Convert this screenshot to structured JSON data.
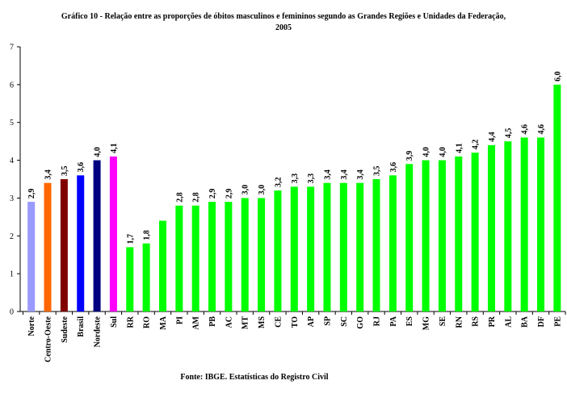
{
  "title_line1": "Gráfico 10 - Relação entre as proporções de óbitos masculinos e femininos segundo as Grandes Regiões e Unidades da Federação,",
  "title_line2": "2005",
  "source": "Fonte: IBGE. Estatísticas do Registro Civil",
  "chart_data": {
    "type": "bar",
    "title": "Gráfico 10 - Relação entre as proporções de óbitos masculinos e femininos segundo as Grandes Regiões e Unidades da Federação, 2005",
    "xlabel": "",
    "ylabel": "",
    "ylim": [
      0,
      7
    ],
    "yticks": [
      0,
      1,
      2,
      3,
      4,
      5,
      6,
      7
    ],
    "grid": false,
    "legend": "none",
    "bars": [
      {
        "label": "Norte",
        "value": 2.9,
        "display": "2,9",
        "color": "#9999ff"
      },
      {
        "label": "Centro-Oeste",
        "value": 3.4,
        "display": "3,4",
        "color": "#ff6600"
      },
      {
        "label": "Sudeste",
        "value": 3.5,
        "display": "3,5",
        "color": "#800000"
      },
      {
        "label": "Brasil",
        "value": 3.6,
        "display": "3,6",
        "color": "#0000ff"
      },
      {
        "label": "Nordeste",
        "value": 4.0,
        "display": "4,0",
        "color": "#000080"
      },
      {
        "label": "Sul",
        "value": 4.1,
        "display": "4,1",
        "color": "#ff00ff"
      },
      {
        "label": "RR",
        "value": 1.7,
        "display": "1,7",
        "color": "#00ff00"
      },
      {
        "label": "RO",
        "value": 1.8,
        "display": "1,8",
        "color": "#00ff00"
      },
      {
        "label": "MA",
        "value": 2.4,
        "display": "",
        "color": "#00ff00"
      },
      {
        "label": "PI",
        "value": 2.8,
        "display": "2,8",
        "color": "#00ff00"
      },
      {
        "label": "AM",
        "value": 2.8,
        "display": "2,8",
        "color": "#00ff00"
      },
      {
        "label": "PB",
        "value": 2.9,
        "display": "2,9",
        "color": "#00ff00"
      },
      {
        "label": "AC",
        "value": 2.9,
        "display": "2,9",
        "color": "#00ff00"
      },
      {
        "label": "MT",
        "value": 3.0,
        "display": "3,0",
        "color": "#00ff00"
      },
      {
        "label": "MS",
        "value": 3.0,
        "display": "3,0",
        "color": "#00ff00"
      },
      {
        "label": "CE",
        "value": 3.2,
        "display": "3,2",
        "color": "#00ff00"
      },
      {
        "label": "TO",
        "value": 3.3,
        "display": "3,3",
        "color": "#00ff00"
      },
      {
        "label": "AP",
        "value": 3.3,
        "display": "3,3",
        "color": "#00ff00"
      },
      {
        "label": "SP",
        "value": 3.4,
        "display": "3,4",
        "color": "#00ff00"
      },
      {
        "label": "SC",
        "value": 3.4,
        "display": "3,4",
        "color": "#00ff00"
      },
      {
        "label": "GO",
        "value": 3.4,
        "display": "3,4",
        "color": "#00ff00"
      },
      {
        "label": "RJ",
        "value": 3.5,
        "display": "3,5",
        "color": "#00ff00"
      },
      {
        "label": "PA",
        "value": 3.6,
        "display": "3,6",
        "color": "#00ff00"
      },
      {
        "label": "ES",
        "value": 3.9,
        "display": "3,9",
        "color": "#00ff00"
      },
      {
        "label": "MG",
        "value": 4.0,
        "display": "4,0",
        "color": "#00ff00"
      },
      {
        "label": "SE",
        "value": 4.0,
        "display": "4,0",
        "color": "#00ff00"
      },
      {
        "label": "RN",
        "value": 4.1,
        "display": "4,1",
        "color": "#00ff00"
      },
      {
        "label": "RS",
        "value": 4.2,
        "display": "4,2",
        "color": "#00ff00"
      },
      {
        "label": "PR",
        "value": 4.4,
        "display": "4,4",
        "color": "#00ff00"
      },
      {
        "label": "AL",
        "value": 4.5,
        "display": "4,5",
        "color": "#00ff00"
      },
      {
        "label": "BA",
        "value": 4.6,
        "display": "4,6",
        "color": "#00ff00"
      },
      {
        "label": "DF",
        "value": 4.6,
        "display": "4,6",
        "color": "#00ff00"
      },
      {
        "label": "PE",
        "value": 6.0,
        "display": "6,0",
        "color": "#00ff00"
      }
    ]
  }
}
